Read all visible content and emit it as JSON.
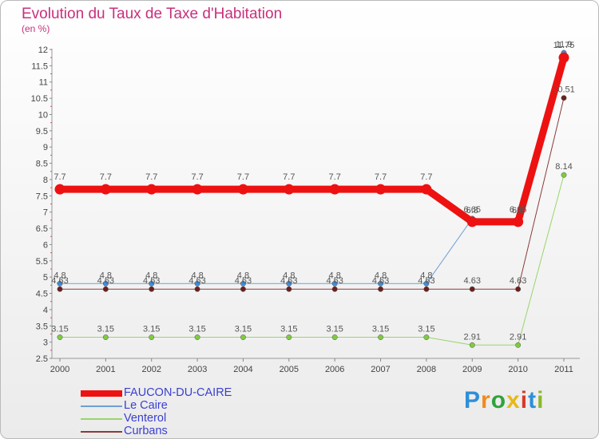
{
  "title": "Evolution du Taux de Taxe d'Habitation",
  "unit_label": "(en %)",
  "logo": {
    "letters": [
      "P",
      "r",
      "o",
      "x",
      "i",
      "t",
      "i"
    ],
    "colors": [
      "#2f8fd6",
      "#f08a1c",
      "#2fa33c",
      "#e8b818",
      "#d63a2a",
      "#2f8fd6",
      "#8ab82a"
    ]
  },
  "chart_data": {
    "type": "line",
    "title": "Evolution du Taux de Taxe d'Habitation",
    "ylabel": "(en %)",
    "xlabel": "",
    "ylim": [
      2.5,
      12
    ],
    "yticks": [
      "2.5",
      "3",
      "3.5",
      "4",
      "4.5",
      "5",
      "5.5",
      "6",
      "6.5",
      "7",
      "7.5",
      "8",
      "8.5",
      "9",
      "9.5",
      "10",
      "10.5",
      "11",
      "11.5",
      "12"
    ],
    "x": [
      "2000",
      "2001",
      "2002",
      "2003",
      "2004",
      "2005",
      "2006",
      "2007",
      "2008",
      "2009",
      "2010",
      "2011"
    ],
    "series": [
      {
        "name": "Le Caire",
        "color": "#6fa1d2",
        "marker": "#3f8de0",
        "width": 1,
        "values": [
          4.8,
          4.8,
          4.8,
          4.8,
          4.8,
          4.8,
          4.8,
          4.8,
          4.8,
          6.8,
          6.8,
          11.9
        ],
        "labels": [
          "4.8",
          "4.8",
          "4.8",
          "4.8",
          "4.8",
          "4.8",
          "4.8",
          "4.8",
          "4.8",
          "6.8",
          "6.8",
          "11.9"
        ]
      },
      {
        "name": "Venterol",
        "color": "#98d56b",
        "marker": "#7fcb3f",
        "width": 1,
        "values": [
          3.15,
          3.15,
          3.15,
          3.15,
          3.15,
          3.15,
          3.15,
          3.15,
          3.15,
          2.91,
          2.91,
          8.14
        ],
        "labels": [
          "3.15",
          "3.15",
          "3.15",
          "3.15",
          "3.15",
          "3.15",
          "3.15",
          "3.15",
          "3.15",
          "2.91",
          "2.91",
          "8.14"
        ]
      },
      {
        "name": "Curbans",
        "color": "#8b3a3a",
        "marker": "#6b1f1f",
        "width": 1,
        "values": [
          4.63,
          4.63,
          4.63,
          4.63,
          4.63,
          4.63,
          4.63,
          4.63,
          4.63,
          4.63,
          4.63,
          10.51
        ],
        "labels": [
          "4.63",
          "4.63",
          "4.63",
          "4.63",
          "4.63",
          "4.63",
          "4.63",
          "4.63",
          "4.63",
          "4.63",
          "4.63",
          "10.51"
        ]
      },
      {
        "name": "FAUCON-DU-CAIRE",
        "color": "#ee1111",
        "marker": "#ee1111",
        "width": 9,
        "values": [
          7.7,
          7.7,
          7.7,
          7.7,
          7.7,
          7.7,
          7.7,
          7.7,
          7.7,
          6.7,
          6.7,
          11.75
        ],
        "labels": [
          "7.7",
          "7.7",
          "7.7",
          "7.7",
          "7.7",
          "7.7",
          "7.7",
          "7.7",
          "7.7",
          "6.65",
          "6.65",
          "11.75"
        ]
      }
    ],
    "legend_order": [
      "FAUCON-DU-CAIRE",
      "Le Caire",
      "Venterol",
      "Curbans"
    ],
    "legend_position": "bottom-left",
    "grid": false
  }
}
